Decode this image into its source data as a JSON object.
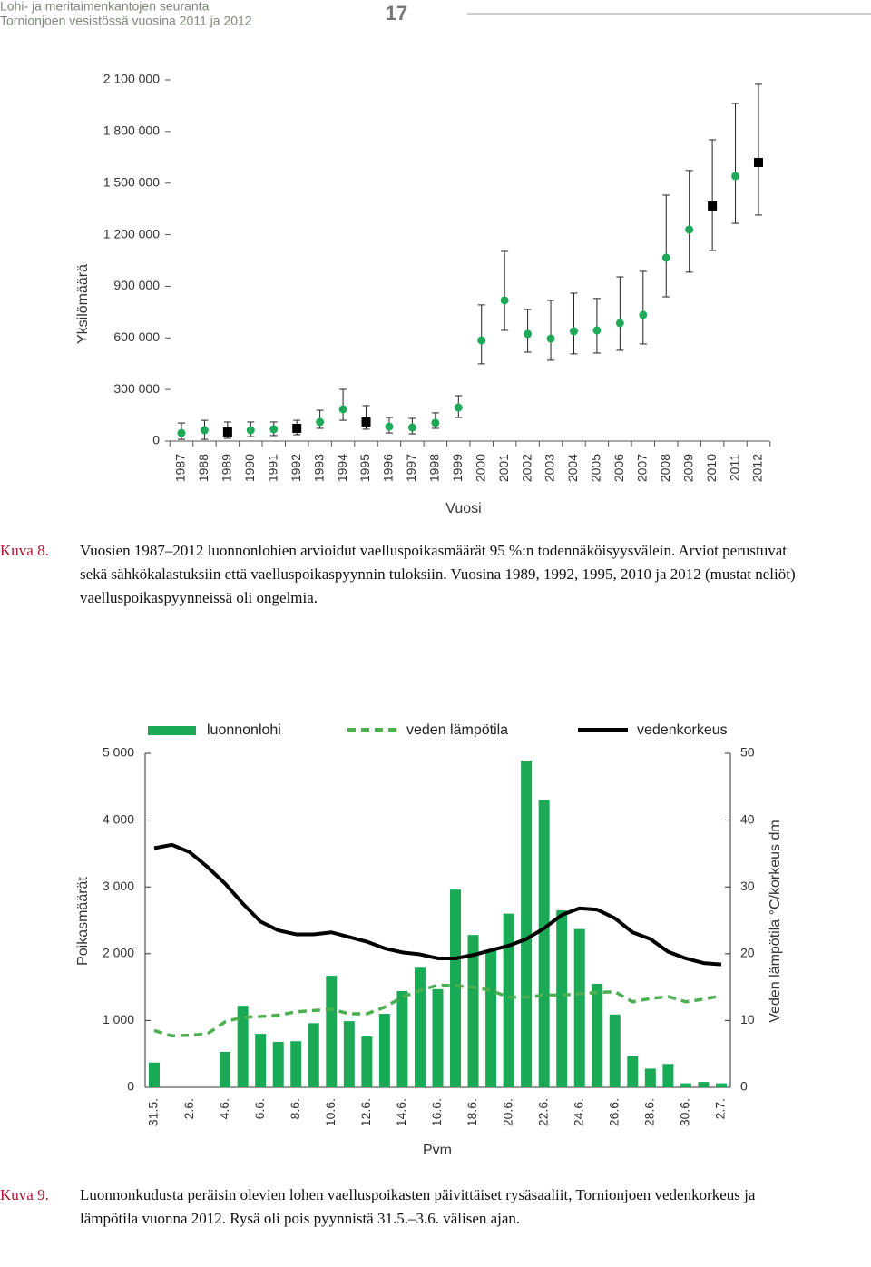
{
  "header": {
    "lines": [
      "Lohi- ja meritaimenkantojen seuranta",
      "Tornionjoen vesistössä vuosina 2011 ja 2012"
    ],
    "page_number": "17"
  },
  "chart_data": [
    {
      "type": "scatter",
      "y_label": "Yksilömäärä",
      "x_label": "Vuosi",
      "categories": [
        "1987",
        "1988",
        "1989",
        "1990",
        "1991",
        "1992",
        "1993",
        "1994",
        "1995",
        "1996",
        "1997",
        "1998",
        "1999",
        "2000",
        "2001",
        "2002",
        "2003",
        "2004",
        "2005",
        "2006",
        "2007",
        "2008",
        "2009",
        "2010",
        "2011",
        "2012"
      ],
      "series": [
        {
          "marker": "circle",
          "color": "#1faa59",
          "values": [
            47000,
            63000,
            null,
            63000,
            69000,
            null,
            111000,
            185000,
            null,
            84000,
            79000,
            106000,
            195000,
            586000,
            818000,
            623000,
            596000,
            639000,
            644000,
            686000,
            734000,
            1066000,
            1230000,
            null,
            1541000,
            null
          ]
        },
        {
          "marker": "square",
          "color": "#000000",
          "values": [
            null,
            null,
            53000,
            null,
            null,
            74000,
            null,
            null,
            111000,
            null,
            null,
            null,
            null,
            null,
            null,
            null,
            null,
            null,
            null,
            null,
            null,
            null,
            null,
            1367000,
            null,
            1620000
          ]
        }
      ],
      "low": [
        10000,
        10000,
        16000,
        26000,
        32000,
        37000,
        74000,
        121000,
        69000,
        47000,
        42000,
        74000,
        137000,
        449000,
        644000,
        517000,
        470000,
        507000,
        512000,
        528000,
        565000,
        839000,
        982000,
        1108000,
        1266000,
        1314000
      ],
      "high": [
        105000,
        121000,
        111000,
        111000,
        111000,
        121000,
        179000,
        301000,
        206000,
        137000,
        132000,
        164000,
        264000,
        792000,
        1103000,
        765000,
        818000,
        860000,
        829000,
        955000,
        987000,
        1430000,
        1573000,
        1752000,
        1963000,
        2074000
      ],
      "ylim": [
        0,
        2100000
      ],
      "yticks": [
        0,
        {
          "value": 300000,
          "label": "300 000"
        },
        {
          "value": 600000,
          "label": "600 000"
        },
        {
          "value": 900000,
          "label": "900 000"
        },
        {
          "value": 1200000,
          "label": "1 200 000"
        },
        {
          "value": 1500000,
          "label": "1 500 000"
        },
        {
          "value": 1800000,
          "label": "1 800 000"
        },
        {
          "value": 2100000,
          "label": "2 100 000"
        }
      ]
    },
    {
      "type": "bar",
      "y_label": "Poikasmäärät",
      "y2_label": "Veden lämpötila °C/korkeus dm",
      "x_label": "Pvm",
      "categories": [
        "31.5.",
        null,
        "2.6.",
        null,
        "4.6.",
        null,
        "6.6.",
        null,
        "8.6.",
        null,
        "10.6.",
        null,
        "12.6.",
        null,
        "14.6.",
        null,
        "16.6.",
        null,
        "18.6.",
        null,
        "20.6.",
        null,
        "22.6.",
        null,
        "24.6.",
        null,
        "26.6.",
        null,
        "28.6.",
        null,
        "30.6.",
        null,
        "2.7."
      ],
      "series": [
        {
          "name": "luonnonlohi",
          "type": "bar",
          "color": "#1aaa55",
          "values": [
            370,
            null,
            null,
            null,
            530,
            1220,
            800,
            680,
            690,
            960,
            1670,
            990,
            760,
            1100,
            1440,
            1790,
            1470,
            2960,
            2280,
            2060,
            2600,
            4890,
            4300,
            2650,
            2370,
            1550,
            1090,
            470,
            280,
            350,
            60,
            80,
            60
          ]
        },
        {
          "name": "veden lämpötila",
          "type": "line",
          "dashed": true,
          "color": "#4caf50",
          "axis": "y2",
          "values": [
            8.5,
            7.7,
            7.8,
            8,
            9.8,
            10.5,
            10.6,
            10.8,
            11.3,
            11.5,
            11.7,
            11,
            11,
            12,
            13.5,
            14.5,
            15.3,
            15.2,
            15,
            14.5,
            13.5,
            13.5,
            13.8,
            13.8,
            14,
            14.2,
            14.3,
            12.8,
            13.3,
            13.6,
            12.8,
            13.2,
            13.7
          ]
        },
        {
          "name": "vedenkorkeus",
          "type": "line",
          "dashed": false,
          "color": "#000000",
          "axis": "y2",
          "values": [
            35.8,
            36.3,
            35.2,
            33,
            30.5,
            27.5,
            24.8,
            23.5,
            22.9,
            22.9,
            23.2,
            22.5,
            21.8,
            20.8,
            20.2,
            19.9,
            19.3,
            19.3,
            19.8,
            20.5,
            21.2,
            22.2,
            23.8,
            25.8,
            26.8,
            26.6,
            25.3,
            23.2,
            22.2,
            20.3,
            19.3,
            18.6,
            18.4
          ]
        }
      ],
      "ylim": [
        0,
        5000
      ],
      "yticks": [
        0,
        {
          "value": 1000,
          "label": "1 000"
        },
        {
          "value": 2000,
          "label": "2 000"
        },
        {
          "value": 3000,
          "label": "3 000"
        },
        {
          "value": 4000,
          "label": "4 000"
        },
        {
          "value": 5000,
          "label": "5 000"
        }
      ],
      "y2lim": [
        0,
        50
      ],
      "y2ticks": [
        0,
        10,
        20,
        30,
        40,
        50
      ]
    }
  ],
  "captions": [
    {
      "label": "Kuva 8.",
      "text": "Vuosien 1987–2012 luonnonlohien arvioidut vaelluspoikasmäärät 95 %:n todennäköisyysvälein. Arviot perustuvat sekä sähkökalastuksiin että vaelluspoikaspyynnin tuloksiin. Vuosina 1989, 1992, 1995, 2010 ja 2012 (mustat neliöt) vaelluspoikaspyynneissä oli ongelmia."
    },
    {
      "label": "Kuva 9.",
      "text": "Luonnonkudusta peräisin olevien lohen vaelluspoikasten päivittäiset rysäsaaliit, Tornionjoen vedenkorkeus ja lämpötila vuonna 2012. Rysä oli pois pyynnistä 31.5.–3.6. välisen ajan."
    }
  ]
}
